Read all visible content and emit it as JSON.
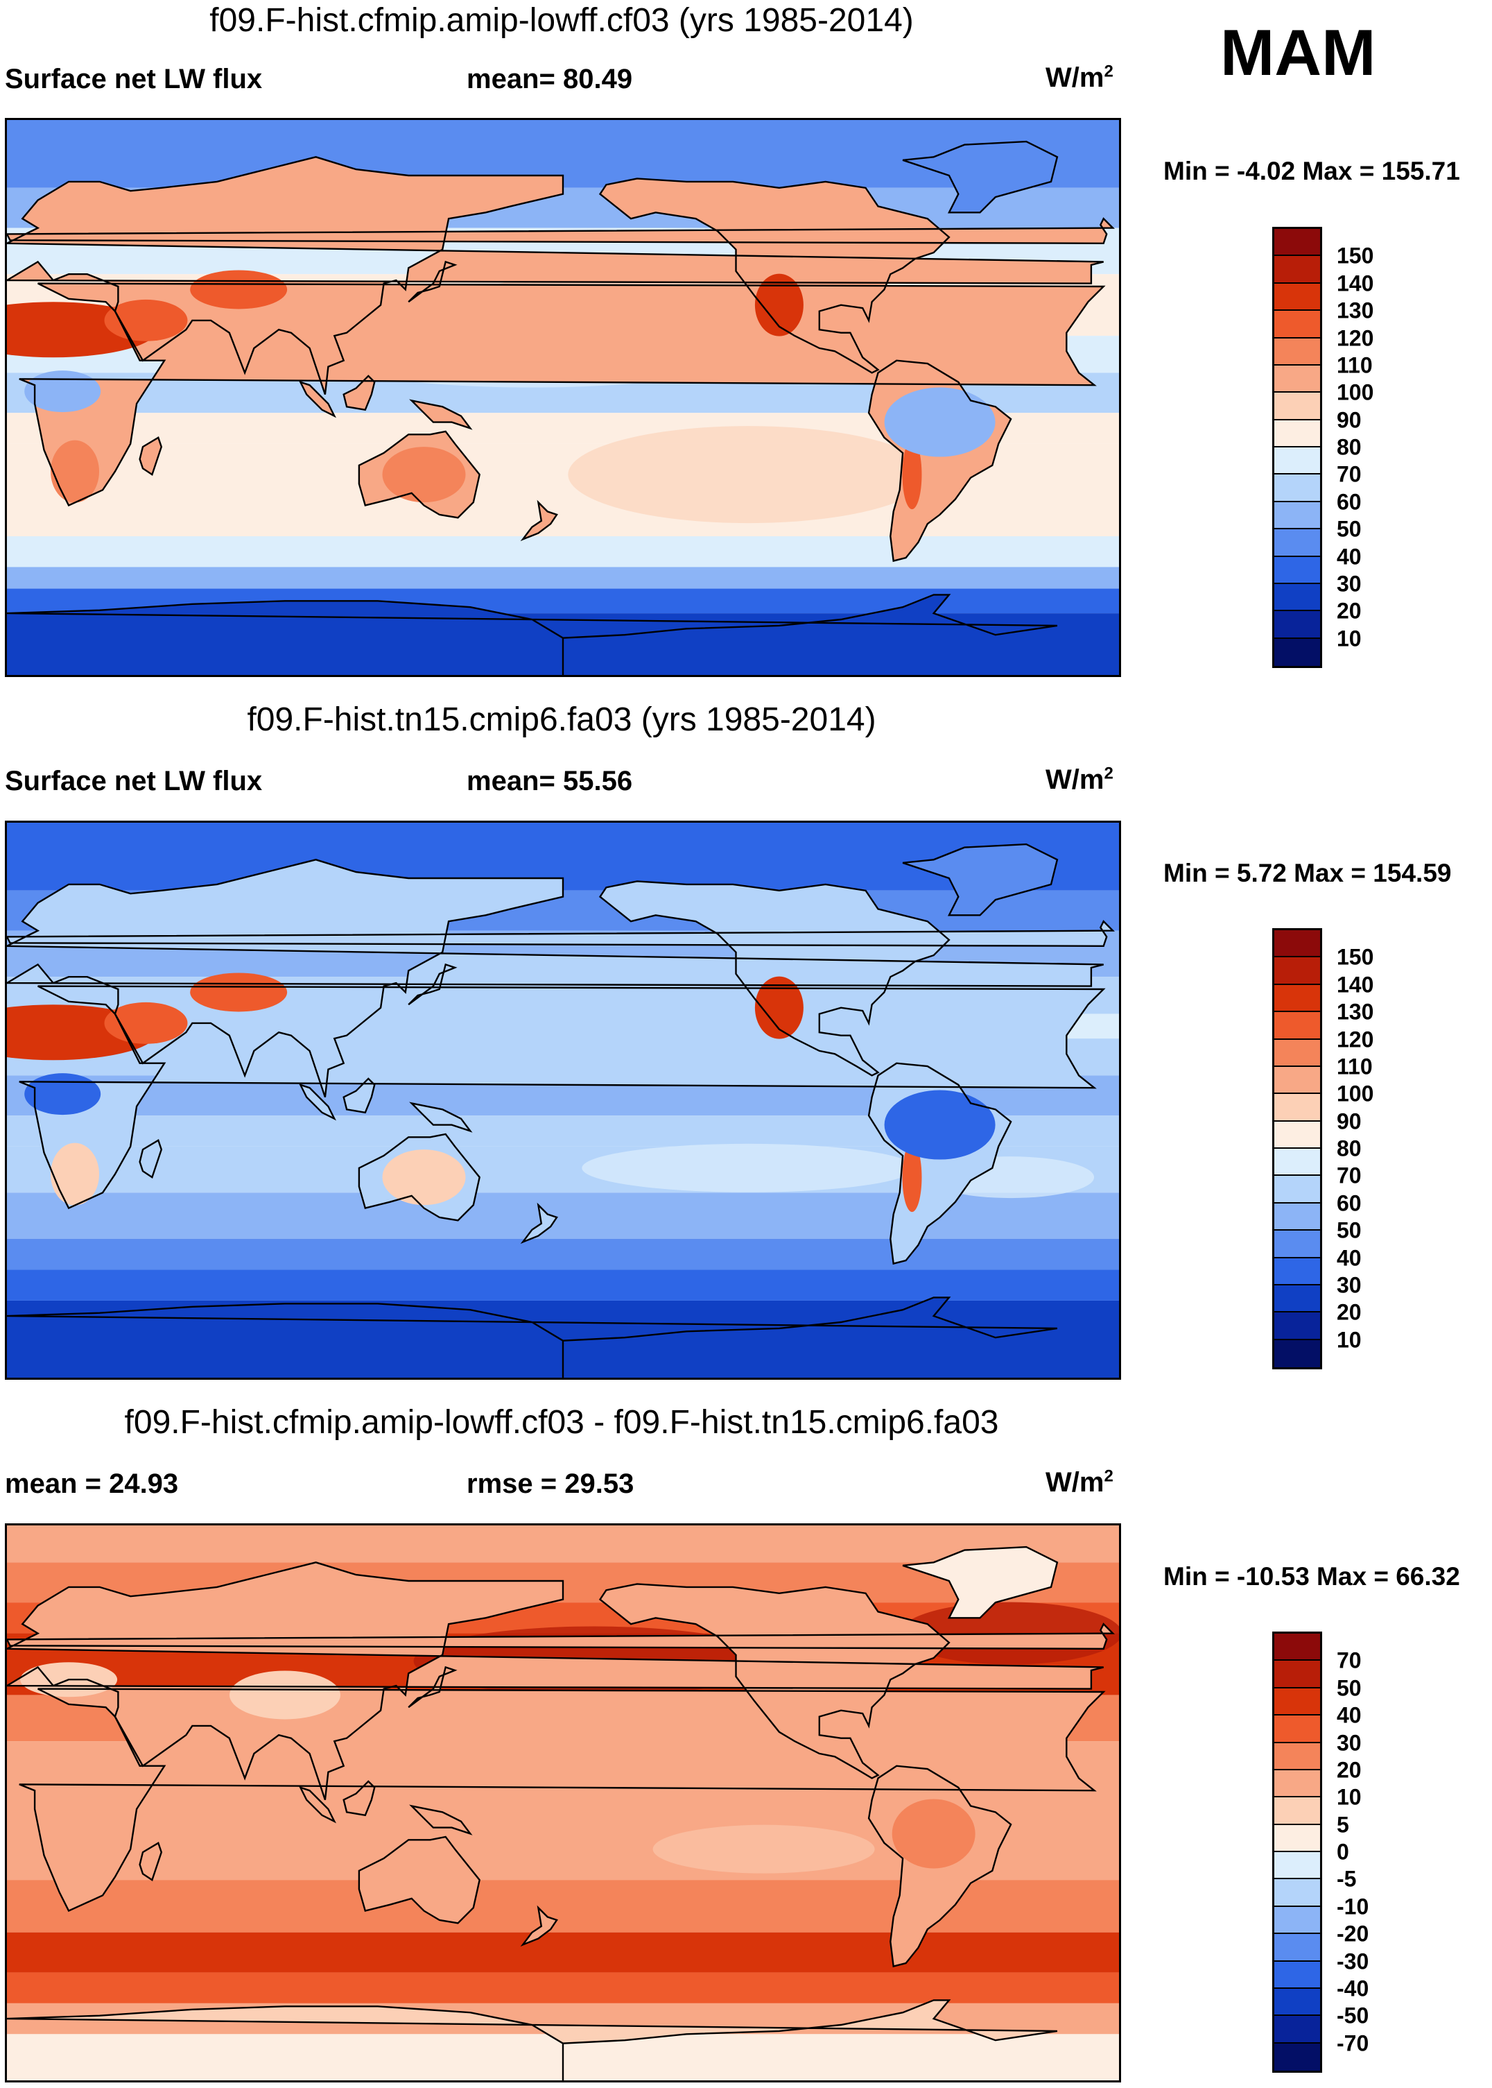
{
  "season": "MAM",
  "panels": [
    {
      "title": "f09.F-hist.cfmip.amip-lowff.cf03 (yrs 1985-2014)",
      "left_label": "Surface net LW flux",
      "center_label": "mean=  80.49",
      "units": "W/m",
      "units_sup": "2",
      "minmax": "Min =  -4.02 Max = 155.71",
      "colorbar_labels": [
        "150",
        "140",
        "130",
        "120",
        "110",
        "100",
        "90",
        "80",
        "70",
        "60",
        "50",
        "40",
        "30",
        "20",
        "10"
      ],
      "colorbar_colors": [
        "#8c0a0a",
        "#b81e08",
        "#d8340a",
        "#ee5a2c",
        "#f4845a",
        "#f8a886",
        "#fcd0b6",
        "#fdeee2",
        "#dceefc",
        "#b4d4fa",
        "#8cb4f6",
        "#5a8cf0",
        "#2e66e6",
        "#1040c4",
        "#08239a",
        "#030f66"
      ],
      "pattern": "lw"
    },
    {
      "title": "f09.F-hist.tn15.cmip6.fa03 (yrs 1985-2014)",
      "left_label": "Surface net LW flux",
      "center_label": "mean=  55.56",
      "units": "W/m",
      "units_sup": "2",
      "minmax": "Min =   5.72 Max = 154.59",
      "colorbar_labels": [
        "150",
        "140",
        "130",
        "120",
        "110",
        "100",
        "90",
        "80",
        "70",
        "60",
        "50",
        "40",
        "30",
        "20",
        "10"
      ],
      "colorbar_colors": [
        "#8c0a0a",
        "#b81e08",
        "#d8340a",
        "#ee5a2c",
        "#f4845a",
        "#f8a886",
        "#fcd0b6",
        "#fdeee2",
        "#dceefc",
        "#b4d4fa",
        "#8cb4f6",
        "#5a8cf0",
        "#2e66e6",
        "#1040c4",
        "#08239a",
        "#030f66"
      ],
      "pattern": "lw2"
    },
    {
      "title": "f09.F-hist.cfmip.amip-lowff.cf03 - f09.F-hist.tn15.cmip6.fa03",
      "left_label": "mean =  24.93",
      "center_label": "rmse =  29.53",
      "units": "W/m",
      "units_sup": "2",
      "minmax": "Min = -10.53 Max =  66.32",
      "colorbar_labels": [
        "70",
        "50",
        "40",
        "30",
        "20",
        "10",
        "5",
        "0",
        "-5",
        "-10",
        "-20",
        "-30",
        "-40",
        "-50",
        "-70"
      ],
      "colorbar_colors": [
        "#8c0a0a",
        "#b81e08",
        "#d8340a",
        "#ee5a2c",
        "#f4845a",
        "#f8a886",
        "#fcd0b6",
        "#fdeee2",
        "#dceefc",
        "#b4d4fa",
        "#8cb4f6",
        "#5a8cf0",
        "#2e66e6",
        "#1040c4",
        "#08239a",
        "#030f66"
      ],
      "pattern": "diff"
    }
  ]
}
